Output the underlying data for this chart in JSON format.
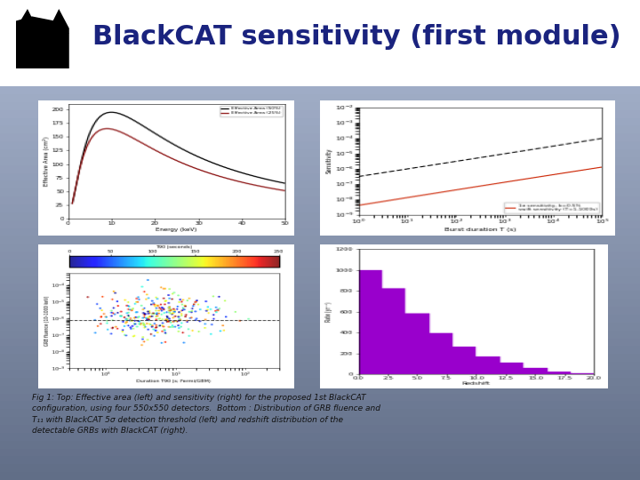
{
  "title": "BlackCAT sensitivity (first module)",
  "title_color": "#1a237e",
  "title_fontsize": 22,
  "slide_bg": "#4a6285",
  "header_bg": "#ffffff",
  "panel_bg": "#f8f8f8",
  "border_color": "#4a6285",
  "caption": "Fig 1: Top: Effective area (left) and sensitivity (right) for the proposed 1st BlackCAT\nconfiguration, using four 550x550 detectors.  Bottom : Distribution of GRB fluence and\nT₁₁ with BlackCAT 5σ detection threshold (left) and redshift distribution of the\ndetectable GRBs with BlackCAT (right).",
  "caption_fontsize": 6.5,
  "caption_color": "#111111"
}
